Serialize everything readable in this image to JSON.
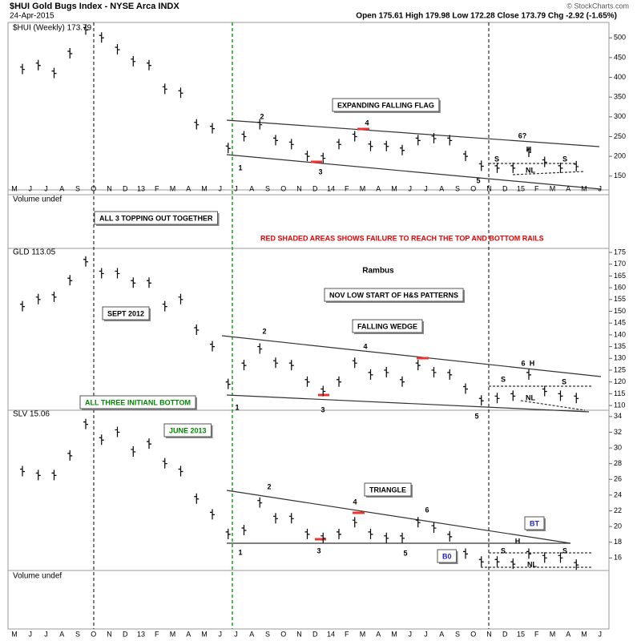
{
  "header": {
    "title": "$HUI Gold Bugs Index - NYSE Arca INDX",
    "date": "24-Apr-2015",
    "quote": "Open 175.61  High 179.98  Low 172.28  Close 173.79  Chg -2.92 (-1.65%)",
    "credit": "© StockCharts.com"
  },
  "months": [
    "M",
    "J",
    "J",
    "A",
    "S",
    "O",
    "N",
    "D",
    "13",
    "F",
    "M",
    "A",
    "M",
    "J",
    "J",
    "A",
    "S",
    "O",
    "N",
    "D",
    "14",
    "F",
    "M",
    "A",
    "M",
    "J",
    "J",
    "A",
    "S",
    "O",
    "N",
    "D",
    "15",
    "F",
    "M",
    "A",
    "M",
    "J"
  ],
  "volume_labels": [
    "Volume undef",
    "Volume undef"
  ],
  "chart_data": [
    {
      "type": "ohlc",
      "title": "$HUI (Weekly) 173.79",
      "color": "#000000",
      "grid": false,
      "values": [
        420,
        430,
        410,
        460,
        520,
        500,
        470,
        440,
        430,
        370,
        360,
        280,
        270,
        220,
        250,
        280,
        240,
        230,
        200,
        195,
        230,
        250,
        225,
        225,
        215,
        240,
        245,
        240,
        200,
        175,
        170,
        170,
        210,
        185,
        170,
        174
      ],
      "ylim": [
        115,
        535
      ],
      "yticks": [
        150,
        200,
        250,
        300,
        350,
        400,
        450,
        500
      ]
    },
    {
      "type": "ohlc",
      "title": "GLD 113.05",
      "color": "#000000",
      "grid": false,
      "values": [
        152,
        155,
        156,
        163,
        171,
        166,
        166,
        162,
        162,
        152,
        155,
        142,
        135,
        119,
        127,
        134,
        128,
        127,
        120,
        116,
        120,
        128,
        123,
        124,
        120,
        127,
        124,
        123,
        117,
        112,
        113,
        114,
        123,
        116,
        114,
        113
      ],
      "ylim": [
        108,
        176.7
      ],
      "yticks": [
        110,
        115,
        120,
        125,
        130,
        135,
        140,
        145,
        150,
        155,
        160,
        165,
        170,
        175
      ]
    },
    {
      "type": "ohlc",
      "title": "SLV 15.06",
      "color": "#000000",
      "grid": false,
      "values": [
        27,
        26.5,
        26.5,
        29,
        33,
        31,
        32,
        29.5,
        30.5,
        28,
        27,
        23.5,
        21.5,
        19,
        19.5,
        23,
        21,
        21,
        19,
        18.5,
        19,
        20.5,
        19,
        18.5,
        18.5,
        20.5,
        19.8,
        18.7,
        16.5,
        15.5,
        15.5,
        15.2,
        16.5,
        16,
        16,
        15.1
      ],
      "ylim": [
        14.4,
        34.8
      ],
      "yticks": [
        16,
        18,
        20,
        22,
        24,
        26,
        28,
        30,
        32,
        34
      ]
    }
  ],
  "annotations": [
    "EXPANDING FALLING FLAG",
    "2",
    "4",
    "6?",
    "1",
    "3",
    "5",
    "S",
    "H",
    "S",
    "NL",
    "ALL 3 TOPPING OUT TOGETHER",
    "RED SHADED AREAS SHOWS FAILURE TO REACH THE TOP AND BOTTOM RAILS",
    "Rambus",
    "NOV LOW START OF H&S  PATTERNS",
    "SEPT 2012",
    "FALLING WEDGE",
    "2",
    "4",
    "6",
    "H",
    "S",
    "S",
    "NL",
    "1",
    "3",
    "5",
    "ALL THREE INITIANL BOTTOM",
    "JUNE 2013",
    "2",
    "TRIANGLE",
    "4",
    "6",
    "1",
    "3",
    "5",
    "H",
    "S",
    "S",
    "NL",
    "BT",
    "B0"
  ]
}
